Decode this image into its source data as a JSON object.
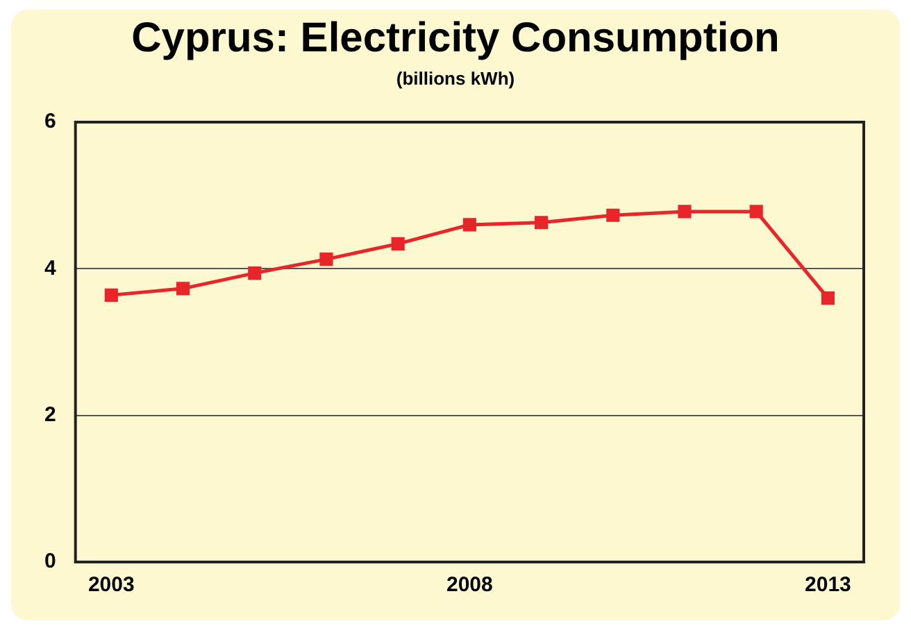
{
  "chart_data": {
    "type": "line",
    "title": "Cyprus: Electricity Consumption",
    "subtitle": "(billions kWh)",
    "x": [
      2003,
      2004,
      2005,
      2006,
      2007,
      2008,
      2009,
      2010,
      2011,
      2012,
      2013
    ],
    "series": [
      {
        "color": "#e8262a",
        "values": [
          3.64,
          3.73,
          3.94,
          4.13,
          4.34,
          4.6,
          4.63,
          4.73,
          4.78,
          4.78,
          3.6
        ]
      }
    ],
    "xlim": [
      2002.5,
      2013.5
    ],
    "xticks": [
      2003,
      2008,
      2013
    ],
    "ylim": [
      0,
      6
    ],
    "yticks": [
      0,
      2,
      4,
      6
    ],
    "grid": "y",
    "legend": false,
    "marker": "square",
    "line_style": "solid"
  }
}
